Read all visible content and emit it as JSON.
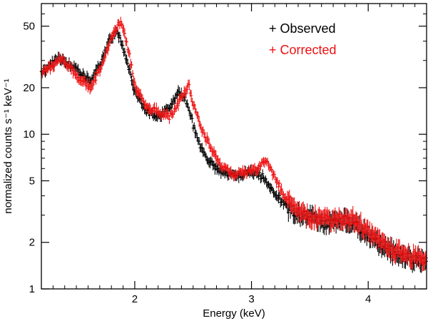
{
  "chart_data": {
    "type": "scatter",
    "title": "",
    "xlabel": "Energy (keV)",
    "ylabel": "normalized counts s⁻¹ keV⁻¹",
    "xscale": "linear",
    "yscale": "log",
    "xlim": [
      1.2,
      4.5
    ],
    "ylim": [
      1,
      70
    ],
    "xticks": [
      {
        "value": 2,
        "label": "2"
      },
      {
        "value": 3,
        "label": "3"
      },
      {
        "value": 4,
        "label": "4"
      }
    ],
    "yticks": [
      {
        "value": 1,
        "label": "1"
      },
      {
        "value": 2,
        "label": "2"
      },
      {
        "value": 5,
        "label": "5"
      },
      {
        "value": 10,
        "label": "10"
      },
      {
        "value": 20,
        "label": "20"
      },
      {
        "value": 50,
        "label": "50"
      }
    ],
    "legend_position": "top-right",
    "series": [
      {
        "name": "Observed",
        "legend_label": "+ Observed",
        "color": "#000000",
        "x": [
          1.2,
          1.3,
          1.36,
          1.45,
          1.55,
          1.62,
          1.7,
          1.78,
          1.85,
          1.92,
          2.0,
          2.1,
          2.2,
          2.3,
          2.38,
          2.45,
          2.5,
          2.55,
          2.6,
          2.7,
          2.8,
          2.9,
          3.0,
          3.1,
          3.2,
          3.3,
          3.4,
          3.5,
          3.6,
          3.7,
          3.8,
          3.9,
          4.0,
          4.1,
          4.2,
          4.3,
          4.4,
          4.5
        ],
        "y": [
          25,
          29,
          31,
          28,
          24,
          22,
          28,
          40,
          47,
          32,
          19,
          14,
          13,
          15,
          19,
          16,
          11.5,
          8.8,
          7.2,
          6.0,
          5.4,
          5.5,
          5.7,
          5.3,
          4.2,
          3.4,
          3.1,
          2.9,
          2.7,
          2.7,
          2.8,
          2.6,
          2.2,
          1.9,
          1.75,
          1.65,
          1.55,
          1.5
        ]
      },
      {
        "name": "Corrected",
        "legend_label": "+ Corrected",
        "color": "#ee1111",
        "x": [
          1.2,
          1.3,
          1.36,
          1.45,
          1.55,
          1.62,
          1.7,
          1.8,
          1.88,
          1.95,
          2.0,
          2.1,
          2.2,
          2.3,
          2.4,
          2.46,
          2.52,
          2.58,
          2.65,
          2.75,
          2.85,
          2.95,
          3.05,
          3.12,
          3.2,
          3.3,
          3.4,
          3.5,
          3.6,
          3.7,
          3.8,
          3.9,
          4.0,
          4.1,
          4.2,
          4.3,
          4.4,
          4.5
        ],
        "y": [
          25,
          28,
          31,
          27,
          22,
          20,
          26,
          42,
          54,
          34,
          21,
          15,
          14,
          13,
          17,
          21,
          14,
          10.5,
          8.2,
          6.2,
          5.5,
          5.6,
          6.0,
          6.8,
          5.3,
          3.8,
          3.2,
          3.0,
          2.8,
          2.8,
          2.9,
          2.8,
          2.3,
          2.0,
          1.8,
          1.7,
          1.6,
          1.55
        ]
      }
    ]
  }
}
